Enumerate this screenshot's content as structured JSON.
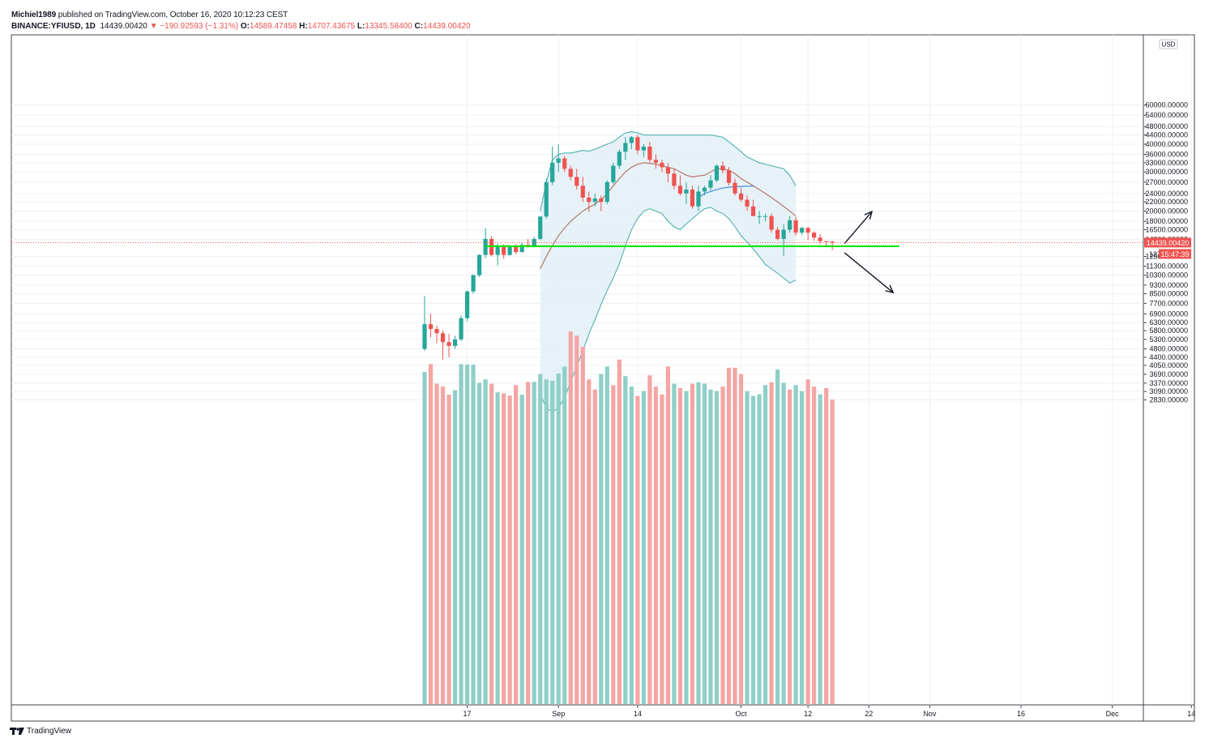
{
  "header": {
    "author": "Michiel1989",
    "published_text": "published on TradingView.com, October 16, 2020 10:12:23 CEST",
    "symbol": "BINANCE:YFIUSD, 1D",
    "last": "14439.00420",
    "change": "▼ −190.92593 (−1.31%)",
    "o_label": "O:",
    "o": "14589.47458",
    "h_label": "H:",
    "h": "14707.43675",
    "l_label": "L:",
    "l": "13345.58400",
    "c_label": "C:",
    "c": "14439.00420"
  },
  "footer": {
    "brand": "TradingView"
  },
  "colors": {
    "up": "#26a69a",
    "down": "#ef5350",
    "upVol": "#8fcfc7",
    "downVol": "#f5a5a4",
    "support": "#00e600",
    "bb": "#5db7b4",
    "bbFill": "#e3f1f6",
    "basis": "#b5766f",
    "ma": "#4a90d9",
    "grid": "#eef0f3"
  },
  "chart_data": {
    "type": "candlestick",
    "symbol": "BINANCE:YFIUSD",
    "interval": "1D",
    "price_scale": "log",
    "currency": "USD",
    "y_ticks": [
      60000,
      54000,
      48000,
      44000,
      40000,
      36000,
      33000,
      30000,
      27000,
      24000,
      22000,
      20000,
      18000,
      16500,
      14900,
      12500,
      11300,
      10300,
      9300,
      8500,
      7700,
      6900,
      6300,
      5800,
      5300,
      4800,
      4400,
      4050,
      3690,
      3370,
      3090,
      2830
    ],
    "y_tick_labels": [
      "60000.00000",
      "54000.00000",
      "48000.00000",
      "44000.00000",
      "40000.00000",
      "36000.00000",
      "33000.00000",
      "30000.00000",
      "27000.00000",
      "24000.00000",
      "22000.00000",
      "20000.00000",
      "18000.00000",
      "16500.00000",
      "14900.00000",
      "12500.00000",
      "11300.00000",
      "10300.00000",
      "9300.00000",
      "8500.00000",
      "7700.00000",
      "6900.00000",
      "6300.00000",
      "5800.00000",
      "5300.00000",
      "4800.00000",
      "4400.00000",
      "4050.00000",
      "3690.00000",
      "3370.00000",
      "3090.00000",
      "2830.00000"
    ],
    "y_unit_label": "USD",
    "x_start_date": "2020-08-10",
    "x_ticks": [
      {
        "day": 7,
        "label": "17"
      },
      {
        "day": 22,
        "label": "Sep"
      },
      {
        "day": 35,
        "label": "14"
      },
      {
        "day": 52,
        "label": "Oct"
      },
      {
        "day": 63,
        "label": "12"
      },
      {
        "day": 73,
        "label": "22"
      },
      {
        "day": 83,
        "label": "Nov"
      },
      {
        "day": 98,
        "label": "16"
      },
      {
        "day": 113,
        "label": "Dec"
      },
      {
        "day": 126,
        "label": "14"
      }
    ],
    "last_price_label": "14439.00420",
    "countdown_label": "15:47:39",
    "countdown_tick_fragment": "137",
    "ohlc": [
      [
        0,
        4800,
        8300,
        4700,
        6200
      ],
      [
        1,
        6200,
        6900,
        5400,
        5900
      ],
      [
        2,
        5900,
        6100,
        5100,
        5650
      ],
      [
        3,
        5650,
        5800,
        4300,
        5150
      ],
      [
        4,
        5150,
        5600,
        4400,
        4950
      ],
      [
        5,
        4950,
        5500,
        4800,
        5300
      ],
      [
        6,
        5300,
        6800,
        5200,
        6600
      ],
      [
        7,
        6600,
        8800,
        6400,
        8700
      ],
      [
        8,
        8700,
        10400,
        8500,
        10300
      ],
      [
        9,
        10300,
        12800,
        10100,
        12700
      ],
      [
        10,
        12700,
        16800,
        12300,
        15000
      ],
      [
        11,
        15000,
        15400,
        12500,
        12700
      ],
      [
        12,
        12700,
        14300,
        11400,
        13800
      ],
      [
        13,
        13800,
        14200,
        12200,
        12700
      ],
      [
        14,
        12700,
        14100,
        12600,
        13800
      ],
      [
        15,
        13800,
        14200,
        12800,
        13100
      ],
      [
        16,
        13100,
        14400,
        13000,
        14100
      ],
      [
        17,
        14100,
        15000,
        13700,
        14000
      ],
      [
        18,
        14000,
        15300,
        13700,
        15000
      ],
      [
        19,
        15000,
        19000,
        14800,
        18900
      ],
      [
        20,
        18900,
        28000,
        18500,
        27000
      ],
      [
        21,
        27000,
        39000,
        26200,
        33000
      ],
      [
        22,
        33000,
        40000,
        30000,
        34500
      ],
      [
        23,
        34500,
        35500,
        30000,
        31000
      ],
      [
        24,
        31000,
        32000,
        27500,
        28500
      ],
      [
        25,
        28500,
        31000,
        25000,
        26000
      ],
      [
        26,
        26000,
        28500,
        22000,
        23000
      ],
      [
        27,
        23000,
        24500,
        19800,
        22000
      ],
      [
        28,
        22000,
        24000,
        21000,
        22800
      ],
      [
        29,
        22800,
        23500,
        20000,
        22000
      ],
      [
        30,
        22000,
        27500,
        21500,
        27000
      ],
      [
        31,
        27000,
        33000,
        26500,
        32000
      ],
      [
        32,
        32000,
        38000,
        31000,
        37000
      ],
      [
        33,
        37000,
        43000,
        34000,
        40500
      ],
      [
        34,
        40500,
        43500,
        38000,
        43000
      ],
      [
        35,
        43000,
        44000,
        36000,
        37500
      ],
      [
        36,
        37500,
        40000,
        35000,
        39000
      ],
      [
        37,
        39000,
        41000,
        33000,
        34000
      ],
      [
        38,
        34000,
        36000,
        31000,
        33000
      ],
      [
        39,
        33000,
        34000,
        30000,
        31500
      ],
      [
        40,
        31500,
        33000,
        27000,
        29500
      ],
      [
        41,
        29500,
        31000,
        25000,
        26000
      ],
      [
        42,
        26000,
        29000,
        23500,
        24000
      ],
      [
        43,
        24000,
        27000,
        21500,
        25000
      ],
      [
        44,
        25000,
        26000,
        20500,
        21000
      ],
      [
        45,
        21000,
        26000,
        20000,
        24500
      ],
      [
        46,
        24500,
        26000,
        23500,
        25500
      ],
      [
        47,
        25500,
        29000,
        24800,
        27500
      ],
      [
        48,
        27500,
        32500,
        27000,
        32000
      ],
      [
        49,
        32000,
        33500,
        29500,
        30500
      ],
      [
        50,
        30500,
        31500,
        26000,
        26800
      ],
      [
        51,
        26800,
        28000,
        23500,
        24000
      ],
      [
        52,
        24000,
        25500,
        22000,
        22500
      ],
      [
        53,
        22500,
        23500,
        20000,
        21000
      ],
      [
        54,
        21000,
        22500,
        19000,
        19000
      ],
      [
        55,
        19000,
        20000,
        17500,
        19000
      ],
      [
        56,
        19000,
        19500,
        18000,
        19000
      ],
      [
        57,
        19000,
        19500,
        16000,
        16500
      ],
      [
        58,
        16500,
        17000,
        14800,
        15000
      ],
      [
        59,
        15000,
        17500,
        12600,
        16500
      ],
      [
        60,
        16500,
        19000,
        16000,
        18200
      ],
      [
        61,
        18200,
        18800,
        15500,
        16000
      ],
      [
        62,
        16000,
        17000,
        15600,
        16800
      ],
      [
        63,
        16800,
        17000,
        14800,
        16000
      ],
      [
        64,
        16000,
        16200,
        14700,
        15200
      ],
      [
        65,
        15200,
        15800,
        14200,
        14650
      ],
      [
        66,
        14650,
        14700,
        13900,
        14630
      ],
      [
        67,
        14589.47458,
        14707.43675,
        13345.584,
        14439.0042
      ]
    ],
    "volume_direction": [
      "up",
      "down",
      "down",
      "down",
      "down",
      "up",
      "up",
      "up",
      "up",
      "up",
      "up",
      "down",
      "up",
      "down",
      "down",
      "down",
      "up",
      "down",
      "up",
      "up",
      "up",
      "up",
      "up",
      "up",
      "down",
      "down",
      "down",
      "down",
      "down",
      "up",
      "up",
      "down",
      "down",
      "up",
      "up",
      "down",
      "up",
      "down",
      "down",
      "down",
      "down",
      "up",
      "down",
      "up",
      "down",
      "up",
      "up",
      "up",
      "up",
      "down",
      "down",
      "down",
      "down",
      "up",
      "up",
      "up",
      "up",
      "down",
      "up",
      "up",
      "down",
      "up",
      "up",
      "down",
      "down",
      "up",
      "down",
      "down"
    ],
    "volume_tops_on_price_scale": [
      3780,
      4100,
      3350,
      3250,
      2990,
      3130,
      4100,
      4080,
      4080,
      3380,
      3500,
      3350,
      3060,
      3030,
      2960,
      3300,
      2990,
      3410,
      3410,
      3700,
      3500,
      3450,
      3720,
      4000,
      5750,
      5500,
      4900,
      3500,
      3150,
      3700,
      4000,
      3300,
      4300,
      3620,
      3250,
      2950,
      3100,
      3650,
      3250,
      3000,
      4000,
      3350,
      3200,
      3100,
      3350,
      3400,
      3350,
      3150,
      3100,
      3250,
      3950,
      3950,
      3700,
      3100,
      2950,
      3000,
      3300,
      3400,
      3880,
      3380,
      3150,
      3300,
      3100,
      3500,
      3250,
      3000,
      3200,
      2840
    ],
    "bollinger_start_day": 19,
    "bollinger_upper": [
      20000,
      27000,
      34000,
      36000,
      36500,
      36500,
      37000,
      37500,
      37200,
      38000,
      39000,
      40000,
      41000,
      43000,
      45000,
      45500,
      45000,
      44000,
      44000,
      44000,
      44000,
      44000,
      44000,
      44000,
      44000,
      44000,
      44000,
      44000,
      44000,
      43500,
      43000,
      41000,
      39000,
      37000,
      35000,
      34000,
      33000,
      32500,
      32000,
      31500,
      31000,
      29000,
      26000
    ],
    "bollinger_basis": [
      11000,
      12500,
      14000,
      15500,
      16800,
      18000,
      19000,
      20000,
      20800,
      21500,
      22500,
      24000,
      26000,
      28000,
      30000,
      31500,
      32500,
      33000,
      32800,
      32500,
      32000,
      31500,
      31000,
      30000,
      29000,
      28500,
      28800,
      29000,
      30000,
      31000,
      31000,
      30500,
      29500,
      28000,
      27000,
      26000,
      25000,
      24000,
      23000,
      22000,
      21000,
      20000,
      19000
    ],
    "bollinger_lower": [
      3000,
      2600,
      2500,
      2600,
      2900,
      3400,
      4000,
      4700,
      5600,
      6500,
      7600,
      8800,
      10000,
      11600,
      14000,
      16500,
      18500,
      20000,
      20500,
      20000,
      19500,
      18000,
      17000,
      16500,
      17500,
      18500,
      19500,
      20500,
      20800,
      20000,
      19500,
      18500,
      17000,
      15500,
      14500,
      13500,
      12500,
      11500,
      11000,
      10500,
      10000,
      9500,
      9800
    ],
    "ma_line": [
      [
        45,
        23000
      ],
      [
        46,
        24000
      ],
      [
        47,
        24500
      ],
      [
        48,
        25000
      ],
      [
        49,
        25400
      ],
      [
        50,
        25600
      ],
      [
        51,
        25800
      ],
      [
        52,
        25800
      ],
      [
        53,
        25900
      ],
      [
        54,
        25900
      ]
    ],
    "support_level": 13900,
    "support_from_day": 10,
    "support_to_day": 78,
    "arrows": [
      {
        "from": [
          69,
          14300
        ],
        "to": [
          73.5,
          19900
        ]
      },
      {
        "from": [
          69,
          13000
        ],
        "to": [
          77,
          8600
        ]
      }
    ]
  }
}
